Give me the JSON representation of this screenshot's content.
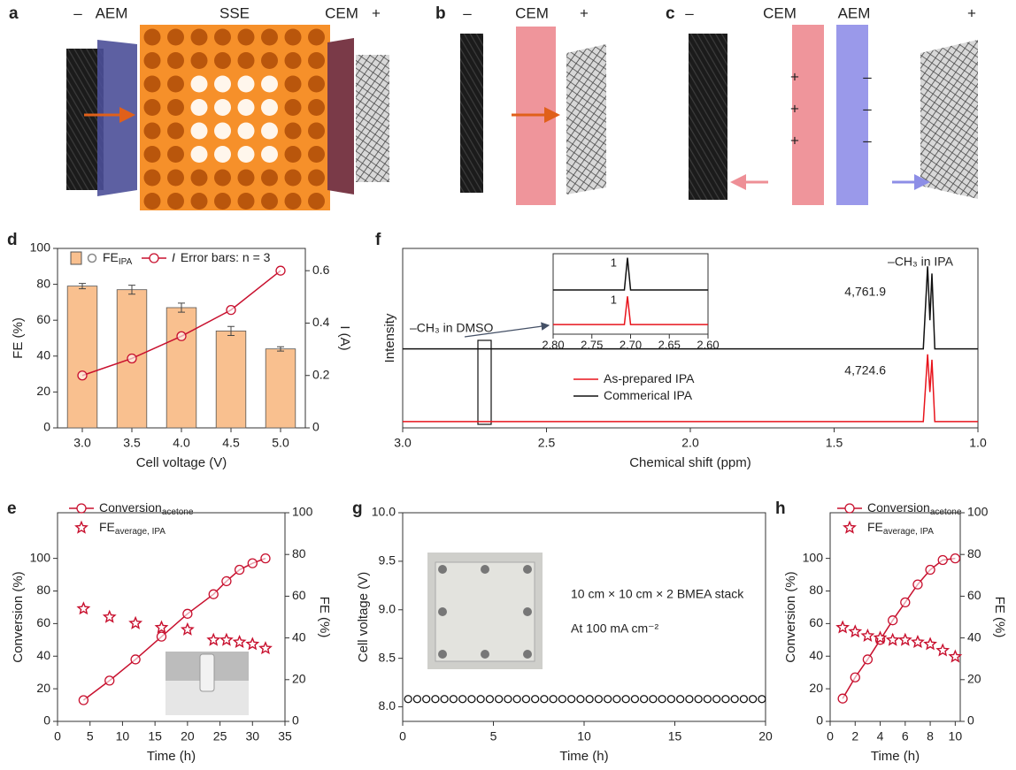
{
  "diagrams": [
    {
      "label": "a",
      "texts": [
        "–",
        "AEM",
        "SSE",
        "CEM",
        "+"
      ]
    },
    {
      "label": "b",
      "texts": [
        "–",
        "CEM",
        "+"
      ]
    },
    {
      "label": "c",
      "texts": [
        "–",
        "CEM",
        "AEM",
        "+"
      ],
      "charges_cem": [
        "+",
        "+",
        "+"
      ],
      "charges_aem": [
        "–",
        "–",
        "–"
      ]
    }
  ],
  "chart_data": [
    {
      "label": "d",
      "type": "combo",
      "categories": [
        "3.0",
        "3.5",
        "4.0",
        "4.5",
        "5.0"
      ],
      "xlabel": "Cell voltage (V)",
      "ylabel": "FE (%)",
      "y2label": "I (A)",
      "ylim": [
        0,
        100
      ],
      "yticks": [
        0,
        20,
        40,
        60,
        80,
        100
      ],
      "y2lim": [
        0,
        0.685
      ],
      "y2ticks": [
        0,
        0.2,
        0.4,
        0.6
      ],
      "legend_note": "Error bars: n = 3",
      "series": [
        {
          "name": "FE",
          "subscript": "IPA",
          "type": "bar",
          "color": "#f9c08f",
          "values": [
            79,
            77,
            67,
            54,
            44
          ],
          "errors": [
            1.5,
            2.5,
            2.5,
            2.5,
            1.2
          ]
        },
        {
          "name": "I",
          "type": "line",
          "marker": "circle",
          "color": "#c8102e",
          "axis": "y2",
          "values": [
            0.2,
            0.265,
            0.35,
            0.45,
            0.6
          ]
        }
      ]
    },
    {
      "label": "f",
      "type": "line",
      "xlim": [
        3,
        1
      ],
      "xticks": [
        {
          "value": 3,
          "label": "3.0"
        },
        {
          "value": 2.5,
          "label": "2.5"
        },
        {
          "value": 2,
          "label": "2.0"
        },
        {
          "value": 1.5,
          "label": "1.5"
        },
        {
          "value": 1,
          "label": "1.0"
        }
      ],
      "ylim": [
        0,
        1
      ],
      "xlabel": "Chemical shift (ppm)",
      "ylabel": "Intensity",
      "annotations": [
        "–CH₃ in IPA",
        "4,761.9",
        "4,724.6",
        "–CH₃ in DMSO"
      ],
      "series": [
        {
          "name": "As-prepared IPA",
          "color": "#e8141c",
          "x": [
            3,
            1.19,
            1.175,
            1.167,
            1.16,
            1.15,
            1
          ],
          "values": [
            0.035,
            0.035,
            0.41,
            0.2,
            0.38,
            0.035,
            0.035
          ]
        },
        {
          "name": "Commerical IPA",
          "color": "#111111",
          "x": [
            3,
            1.19,
            1.175,
            1.167,
            1.16,
            1.15,
            1
          ],
          "values": [
            0.44,
            0.44,
            0.9,
            0.6,
            0.86,
            0.44,
            0.44
          ]
        }
      ],
      "inset": {
        "type": "line",
        "xlim": [
          2.8,
          2.6
        ],
        "xticks": [
          {
            "value": 2.8,
            "label": "2.80"
          },
          2.75,
          {
            "value": 2.7,
            "label": "2.70"
          },
          2.65,
          {
            "value": 2.6,
            "label": "2.60"
          }
        ],
        "ylim": [
          0,
          1
        ],
        "annotations": [
          "1",
          "1"
        ],
        "series": [
          {
            "color": "#111111",
            "x": [
              2.8,
              2.708,
              2.704,
              2.7,
              2.6
            ],
            "values": [
              0.55,
              0.55,
              0.95,
              0.55,
              0.55
            ]
          },
          {
            "color": "#e8141c",
            "x": [
              2.8,
              2.708,
              2.704,
              2.7,
              2.6
            ],
            "values": [
              0.12,
              0.12,
              0.47,
              0.12,
              0.12
            ]
          }
        ]
      }
    },
    {
      "label": "e",
      "type": "combo",
      "x": [
        4,
        8,
        12,
        16,
        20,
        24,
        26,
        28,
        30,
        32
      ],
      "xlim": [
        0,
        35
      ],
      "xticks": [
        0,
        5,
        10,
        15,
        20,
        25,
        30,
        35
      ],
      "ylim": [
        0,
        128
      ],
      "yticks": [
        0,
        20,
        40,
        60,
        80,
        100
      ],
      "y2lim": [
        0,
        100
      ],
      "y2ticks": [
        0,
        20,
        40,
        60,
        80,
        100
      ],
      "xlabel": "Time (h)",
      "ylabel": "Conversion (%)",
      "y2label": "FE (%)",
      "series": [
        {
          "name": "Conversion",
          "subscript": "acetone",
          "type": "line",
          "marker": "circle",
          "color": "#c8102e",
          "values": [
            13,
            25,
            38,
            52,
            66,
            78,
            86,
            93,
            97,
            100
          ]
        },
        {
          "name": "FE",
          "subscript": "average, IPA",
          "type": "scatter",
          "marker": "star",
          "color": "#c8102e",
          "axis": "y2",
          "values": [
            54,
            50,
            47,
            45,
            44,
            39,
            39,
            38,
            37,
            35
          ]
        }
      ]
    },
    {
      "label": "g",
      "type": "scatter",
      "marker": "circle",
      "color": "#111111",
      "x": [
        0.3,
        0.8,
        1.3,
        1.8,
        2.3,
        2.8,
        3.3,
        3.8,
        4.3,
        4.8,
        5.3,
        5.8,
        6.3,
        6.8,
        7.3,
        7.8,
        8.3,
        8.8,
        9.3,
        9.8,
        10.3,
        10.8,
        11.3,
        11.8,
        12.3,
        12.8,
        13.3,
        13.8,
        14.3,
        14.8,
        15.3,
        15.8,
        16.3,
        16.8,
        17.3,
        17.8,
        18.3,
        18.8,
        19.3,
        19.8
      ],
      "values": [
        8.08,
        8.08,
        8.08,
        8.08,
        8.08,
        8.08,
        8.08,
        8.08,
        8.08,
        8.08,
        8.08,
        8.08,
        8.08,
        8.08,
        8.08,
        8.08,
        8.08,
        8.08,
        8.08,
        8.08,
        8.08,
        8.08,
        8.08,
        8.08,
        8.08,
        8.08,
        8.08,
        8.08,
        8.08,
        8.08,
        8.08,
        8.08,
        8.08,
        8.08,
        8.08,
        8.08,
        8.08,
        8.08,
        8.08,
        8.08
      ],
      "xlim": [
        0,
        20
      ],
      "xticks": [
        0,
        5,
        10,
        15,
        20
      ],
      "ylim": [
        7.85,
        10
      ],
      "yticks": [
        {
          "value": 8,
          "label": "8.0"
        },
        8.5,
        {
          "value": 9,
          "label": "9.0"
        },
        9.5,
        {
          "value": 10,
          "label": "10.0"
        }
      ],
      "xlabel": "Time (h)",
      "ylabel": "Cell voltage (V)",
      "annotations": [
        "10 cm × 10 cm × 2 BMEA stack",
        "At 100 mA cm⁻²"
      ]
    },
    {
      "label": "h",
      "type": "combo",
      "x": [
        1,
        2,
        3,
        4,
        5,
        6,
        7,
        8,
        9,
        10
      ],
      "xlim": [
        0,
        10.4
      ],
      "xticks": [
        0,
        2,
        4,
        6,
        8,
        10
      ],
      "ylim": [
        0,
        128
      ],
      "yticks": [
        0,
        20,
        40,
        60,
        80,
        100
      ],
      "y2lim": [
        0,
        100
      ],
      "y2ticks": [
        0,
        20,
        40,
        60,
        80,
        100
      ],
      "xlabel": "Time (h)",
      "ylabel": "Conversion (%)",
      "y2label": "FE (%)",
      "series": [
        {
          "name": "Conversion",
          "subscript": "acetone",
          "type": "line",
          "marker": "circle",
          "color": "#c8102e",
          "values": [
            14,
            27,
            38,
            50,
            62,
            73,
            84,
            93,
            99,
            100
          ]
        },
        {
          "name": "FE",
          "subscript": "average, IPA",
          "type": "scatter",
          "marker": "star",
          "color": "#c8102e",
          "axis": "y2",
          "values": [
            45,
            43,
            41,
            40,
            39,
            39,
            38,
            37,
            34,
            31
          ]
        }
      ]
    }
  ]
}
